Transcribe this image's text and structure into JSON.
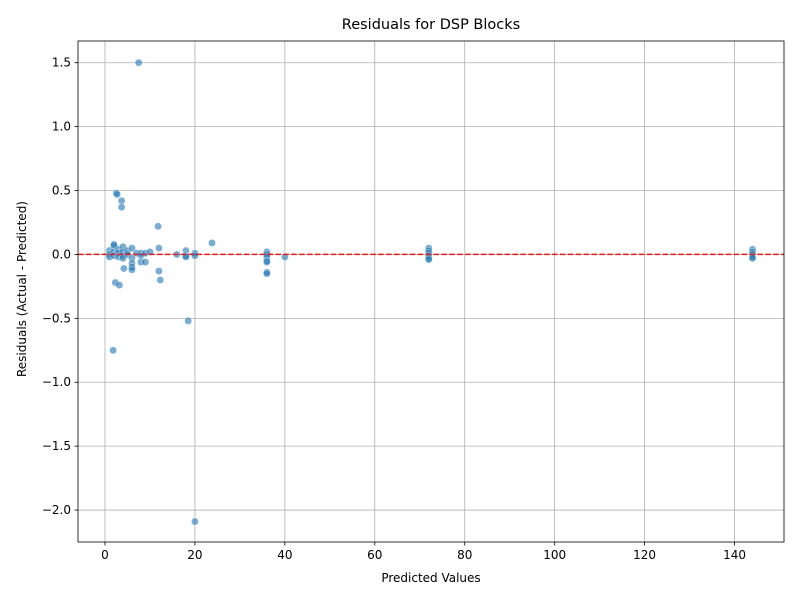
{
  "chart_data": {
    "type": "scatter",
    "title": "Residuals for DSP Blocks",
    "xlabel": "Predicted Values",
    "ylabel": "Residuals (Actual - Predicted)",
    "xlim": [
      -6,
      151
    ],
    "ylim": [
      -2.25,
      1.67
    ],
    "xticks": [
      0,
      20,
      40,
      60,
      80,
      100,
      120,
      140
    ],
    "xtick_labels": [
      "0",
      "20",
      "40",
      "60",
      "80",
      "100",
      "120",
      "140"
    ],
    "yticks": [
      -2.0,
      -1.5,
      -1.0,
      -0.5,
      0.0,
      0.5,
      1.0,
      1.5
    ],
    "ytick_labels": [
      "−2.0",
      "−1.5",
      "−1.0",
      "−0.5",
      "0.0",
      "0.5",
      "1.0",
      "1.5"
    ],
    "grid": true,
    "reference_line": {
      "y": 0,
      "style": "dashed",
      "color": "#e41a1c"
    },
    "point_color": "#1f77b4",
    "points": [
      {
        "x": 7.5,
        "y": 1.5
      },
      {
        "x": 2.5,
        "y": 0.48
      },
      {
        "x": 2.7,
        "y": 0.47
      },
      {
        "x": 3.7,
        "y": 0.42
      },
      {
        "x": 3.7,
        "y": 0.37
      },
      {
        "x": 11.8,
        "y": 0.22
      },
      {
        "x": 23.8,
        "y": 0.09
      },
      {
        "x": 1.0,
        "y": 0.03
      },
      {
        "x": 1.0,
        "y": 0.0
      },
      {
        "x": 1.0,
        "y": -0.02
      },
      {
        "x": 2.0,
        "y": 0.08
      },
      {
        "x": 2.0,
        "y": 0.07
      },
      {
        "x": 2.0,
        "y": 0.02
      },
      {
        "x": 2.0,
        "y": -0.01
      },
      {
        "x": 3.0,
        "y": 0.04
      },
      {
        "x": 3.0,
        "y": 0.01
      },
      {
        "x": 3.0,
        "y": -0.02
      },
      {
        "x": 4.0,
        "y": 0.06
      },
      {
        "x": 4.0,
        "y": 0.02
      },
      {
        "x": 4.0,
        "y": -0.01
      },
      {
        "x": 4.0,
        "y": -0.03
      },
      {
        "x": 4.2,
        "y": -0.11
      },
      {
        "x": 5.0,
        "y": 0.03
      },
      {
        "x": 5.0,
        "y": 0.0
      },
      {
        "x": 6.0,
        "y": 0.05
      },
      {
        "x": 6.0,
        "y": -0.03
      },
      {
        "x": 6.0,
        "y": -0.07
      },
      {
        "x": 6.0,
        "y": -0.1
      },
      {
        "x": 6.0,
        "y": -0.12
      },
      {
        "x": 7.0,
        "y": 0.01
      },
      {
        "x": 8.0,
        "y": 0.01
      },
      {
        "x": 8.0,
        "y": -0.01
      },
      {
        "x": 8.0,
        "y": -0.06
      },
      {
        "x": 9.0,
        "y": 0.01
      },
      {
        "x": 9.0,
        "y": -0.06
      },
      {
        "x": 10.0,
        "y": 0.02
      },
      {
        "x": 12.0,
        "y": 0.05
      },
      {
        "x": 12.0,
        "y": -0.13
      },
      {
        "x": 12.3,
        "y": -0.2
      },
      {
        "x": 2.3,
        "y": -0.22
      },
      {
        "x": 3.2,
        "y": -0.24
      },
      {
        "x": 16.0,
        "y": 0.0
      },
      {
        "x": 18.0,
        "y": 0.03
      },
      {
        "x": 18.0,
        "y": -0.01
      },
      {
        "x": 18.0,
        "y": -0.02
      },
      {
        "x": 18.5,
        "y": -0.52
      },
      {
        "x": 20.0,
        "y": 0.01
      },
      {
        "x": 20.0,
        "y": -0.01
      },
      {
        "x": 1.8,
        "y": -0.75
      },
      {
        "x": 20.0,
        "y": -2.09
      },
      {
        "x": 36.0,
        "y": 0.02
      },
      {
        "x": 36.0,
        "y": 0.0
      },
      {
        "x": 36.0,
        "y": -0.02
      },
      {
        "x": 36.0,
        "y": -0.05
      },
      {
        "x": 36.0,
        "y": -0.06
      },
      {
        "x": 36.0,
        "y": -0.14
      },
      {
        "x": 36.0,
        "y": -0.15
      },
      {
        "x": 40.0,
        "y": -0.02
      },
      {
        "x": 72.0,
        "y": 0.05
      },
      {
        "x": 72.0,
        "y": 0.03
      },
      {
        "x": 72.0,
        "y": 0.01
      },
      {
        "x": 72.0,
        "y": -0.01
      },
      {
        "x": 72.0,
        "y": -0.03
      },
      {
        "x": 72.0,
        "y": -0.04
      },
      {
        "x": 144.0,
        "y": 0.04
      },
      {
        "x": 144.0,
        "y": 0.02
      },
      {
        "x": 144.0,
        "y": 0.0
      },
      {
        "x": 144.0,
        "y": -0.02
      },
      {
        "x": 144.0,
        "y": -0.03
      }
    ]
  }
}
